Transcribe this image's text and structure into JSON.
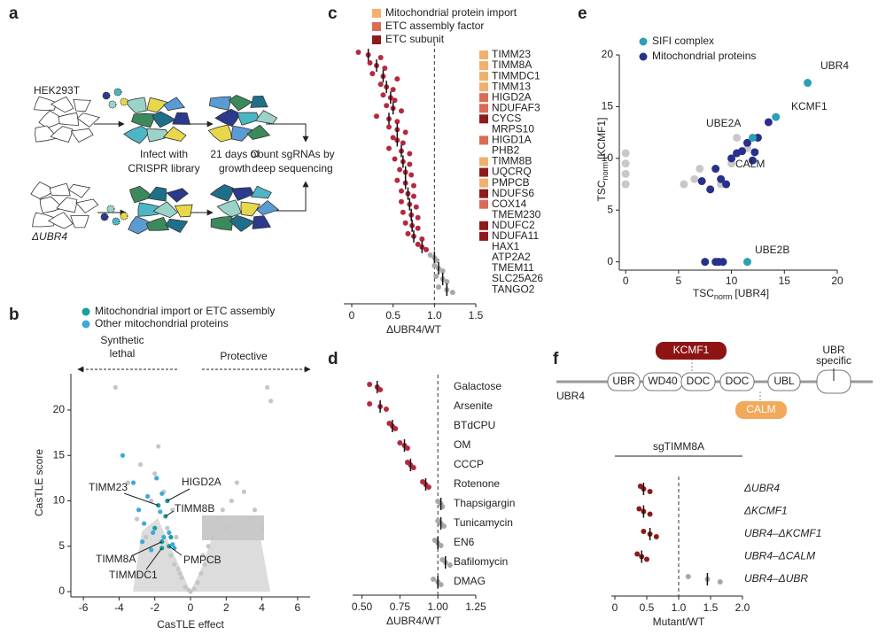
{
  "panel_labels": [
    "a",
    "b",
    "c",
    "d",
    "e",
    "f"
  ],
  "diagram_a": {
    "cell_line": "HEK293T",
    "mutant": "ΔUBR4",
    "steps": [
      [
        "Infect with",
        "CRISPR library"
      ],
      [
        "21 days of",
        "growth"
      ],
      [
        "Count sgRNAs by",
        "deep sequencing"
      ]
    ]
  },
  "diagram_f": {
    "protein": "UBR4",
    "domains": [
      "UBR",
      "WD40",
      "DOC",
      "DOC",
      "UBL"
    ],
    "specific": [
      "UBR",
      "specific"
    ],
    "partners": [
      "KCMF1",
      "CALM"
    ]
  },
  "chart_data": [
    {
      "type": "scatter",
      "x_label": "CasTLE effect",
      "y_label": "CasTLE score",
      "notes": [
        [
          "Synthetic",
          "lethal"
        ],
        [
          "Protective"
        ]
      ],
      "xlim": [
        -6.7,
        6.7
      ],
      "ylim": [
        0,
        24
      ],
      "xticks": [
        -6,
        -4,
        -2,
        0,
        2,
        4,
        6
      ],
      "yticks": [
        0,
        5,
        10,
        15,
        20
      ],
      "series": [
        {
          "color": "#c6c6c6",
          "x": [
            -4.2,
            -3.5,
            -3,
            -2.8,
            -2.5,
            -2.2,
            -2,
            -1.8,
            -1.5,
            -1.3,
            -1.1,
            -1,
            -0.9,
            -0.8,
            -0.6,
            -0.5,
            -0.3,
            -0.1,
            0,
            0.2,
            0.4,
            0.6,
            0.8,
            1,
            1.2,
            1.5,
            1.8,
            2,
            2.3,
            2.6,
            3,
            3.3,
            3.6,
            4,
            4.3,
            4.5,
            -0.7,
            0.7,
            -1.2,
            1.3
          ],
          "y": [
            22.5,
            12,
            8,
            14,
            6,
            10,
            13,
            16,
            11,
            7,
            4,
            9,
            3,
            6,
            2,
            1.5,
            0.5,
            0.2,
            0,
            0.3,
            1,
            2,
            3,
            5,
            6,
            8,
            9,
            7,
            10,
            12,
            11,
            8,
            9,
            7,
            22.5,
            21,
            2.5,
            4,
            5,
            7
          ]
        },
        {
          "name": "Mitochondrial import or ETC assembly",
          "color": "#1b9e9a",
          "x": [
            -1.8,
            -1.3,
            -1.4,
            -1.6,
            -1.6,
            -1.2,
            -2,
            -1.1
          ],
          "y": [
            9.5,
            10,
            8.3,
            5.5,
            4.8,
            5,
            7,
            6
          ],
          "point_labels": [
            "TIMM23",
            "HIGD2A",
            "TIMM8B",
            "TIMM8A",
            "TIMMDC1",
            "PMPCB",
            null,
            null
          ]
        },
        {
          "name": "Other mitochondrial proteins",
          "color": "#3ea9dc",
          "x": [
            -3.8,
            -3.2,
            -2.9,
            -2.6,
            -2.4,
            -2.1,
            -1.9,
            -1.7,
            -1.5,
            -1.2,
            -1,
            -2.2,
            -2.7,
            -1.6,
            -0.9
          ],
          "y": [
            15,
            12,
            9,
            7.5,
            10.5,
            6.5,
            12.5,
            8.8,
            6,
            6.5,
            5.2,
            4.6,
            5.5,
            10.8,
            4.8
          ]
        }
      ]
    },
    {
      "type": "strip",
      "x_label": "ΔUBR4/WT",
      "xlim": [
        0,
        1.5
      ],
      "xticks": [
        0,
        0.5,
        {
          "value": 1,
          "label": "1.0"
        },
        1.5
      ],
      "refline": 1,
      "legend": [
        {
          "name": "Mitochondrial protein import",
          "color": "#f2b06e"
        },
        {
          "name": "ETC assembly factor",
          "color": "#d96c55"
        },
        {
          "name": "ETC subunit",
          "color": "#8e1b1b"
        }
      ],
      "categories": [
        "TIMM23",
        "TIMM8A",
        "TIMMDC1",
        "TIMM13",
        "HIGD2A",
        "NDUFAF3",
        "CYCS",
        "MRPS10",
        "HIGD1A",
        "PHB2",
        "TIMM8B",
        "UQCRQ",
        "PMPCB",
        "NDUFS6",
        "COX14",
        "TMEM230",
        "NDUFC2",
        "NDUFA11",
        "HAX1",
        "ATP2A2",
        "TMEM11",
        "SLC25A26",
        "TANGO2"
      ],
      "groups": [
        0,
        0,
        0,
        0,
        1,
        1,
        2,
        null,
        1,
        null,
        0,
        2,
        0,
        2,
        1,
        null,
        2,
        2,
        null,
        null,
        null,
        null,
        null
      ],
      "values": [
        0.2,
        0.3,
        0.38,
        0.42,
        0.47,
        0.5,
        0.45,
        0.55,
        0.55,
        0.6,
        0.62,
        0.65,
        0.65,
        0.68,
        0.7,
        0.72,
        0.73,
        0.75,
        0.85,
        1,
        1.05,
        1.1,
        1.15
      ],
      "points": [
        [
          0.08,
          0.2,
          0.35
        ],
        [
          0.22,
          0.3,
          0.4
        ],
        [
          0.25,
          0.38,
          0.55
        ],
        [
          0.35,
          0.42,
          0.5
        ],
        [
          0.38,
          0.47,
          0.52
        ],
        [
          0.42,
          0.5,
          0.6
        ],
        [
          0.3,
          0.45,
          0.55
        ],
        [
          0.45,
          0.55,
          0.65
        ],
        [
          0.5,
          0.55,
          0.62
        ],
        [
          0.45,
          0.6,
          0.7
        ],
        [
          0.52,
          0.62,
          0.7
        ],
        [
          0.58,
          0.65,
          0.72
        ],
        [
          0.55,
          0.65,
          0.75
        ],
        [
          0.6,
          0.68,
          0.75
        ],
        [
          0.6,
          0.7,
          0.78
        ],
        [
          0.62,
          0.72,
          0.8
        ],
        [
          0.65,
          0.73,
          0.8
        ],
        [
          0.68,
          0.75,
          0.85
        ],
        [
          0.8,
          0.85,
          0.9
        ],
        [
          0.95,
          1,
          1.03
        ],
        [
          1,
          1.05,
          1.1
        ],
        [
          1.02,
          1.1,
          1.15
        ],
        [
          1.05,
          1.15,
          1.22
        ]
      ],
      "colors": [
        "#b4293d",
        "#b4293d",
        "#b4293d",
        "#b4293d",
        "#b4293d",
        "#b4293d",
        "#b4293d",
        "#b4293d",
        "#b4293d",
        "#b4293d",
        "#b4293d",
        "#b4293d",
        "#b4293d",
        "#b4293d",
        "#b4293d",
        "#b4293d",
        "#b4293d",
        "#b4293d",
        "#b4293d",
        "#a8a8a8",
        "#a8a8a8",
        "#a8a8a8",
        "#a8a8a8"
      ]
    },
    {
      "type": "strip",
      "x_label": "ΔUBR4/WT",
      "xlim": [
        0.45,
        1.25
      ],
      "xticks": [
        {
          "value": 0.5,
          "label": "0.50"
        },
        {
          "value": 0.75,
          "label": "0.75"
        },
        {
          "value": 1,
          "label": "1.00"
        },
        {
          "value": 1.25,
          "label": "1.25"
        }
      ],
      "refline": 1,
      "categories": [
        "Galactose",
        "Arsenite",
        "BTdCPU",
        "OM",
        "CCCP",
        "Rotenone",
        "Thapsigargin",
        "Tunicamycin",
        "EN6",
        "Bafilomycin",
        "DMAG"
      ],
      "values": [
        0.6,
        0.62,
        0.7,
        0.78,
        0.82,
        0.92,
        1.02,
        1.02,
        1,
        1.05,
        1
      ],
      "points": [
        [
          0.55,
          0.6,
          0.62
        ],
        [
          0.55,
          0.62,
          0.66
        ],
        [
          0.68,
          0.7,
          0.72
        ],
        [
          0.75,
          0.78,
          0.8
        ],
        [
          0.8,
          0.82,
          0.84
        ],
        [
          0.9,
          0.92,
          0.94
        ],
        [
          1,
          1.02,
          1.03
        ],
        [
          1,
          1.02,
          1.04
        ],
        [
          0.98,
          1,
          1.02
        ],
        [
          1.03,
          1.05,
          1.08
        ],
        [
          0.97,
          1,
          1.02
        ]
      ],
      "colors": [
        "#b4293d",
        "#b4293d",
        "#b4293d",
        "#b4293d",
        "#b4293d",
        "#b4293d",
        "#a8a8a8",
        "#a8a8a8",
        "#a8a8a8",
        "#a8a8a8",
        "#a8a8a8"
      ]
    },
    {
      "type": "scatter",
      "x_label": {
        "main": "TSC",
        "sub": "norm",
        "rest": "[UBR4]"
      },
      "y_label": {
        "main": "TSC",
        "sub": "norm",
        "rest": "[KCMF1]"
      },
      "xlim": [
        -0.6,
        20
      ],
      "ylim": [
        -0.8,
        20
      ],
      "xticks": [
        0,
        5,
        10,
        15,
        20
      ],
      "yticks": [
        0,
        5,
        10,
        15,
        20
      ],
      "series": [
        {
          "color": "#c8c8c8",
          "x": [
            0,
            0,
            0,
            0,
            5.5,
            6.5,
            7,
            8,
            9,
            10,
            10.5,
            11.5
          ],
          "y": [
            7.5,
            8.5,
            9.5,
            10.5,
            7.5,
            8,
            9,
            7,
            7.5,
            9.5,
            12,
            11
          ]
        },
        {
          "name": "SIFI complex",
          "color": "#2b9fb4",
          "x": [
            17.2,
            14.2,
            12,
            11.5
          ],
          "y": [
            17.3,
            14,
            12,
            0
          ],
          "point_labels": [
            "UBR4",
            "KCMF1",
            "UBE2A",
            "UBE2B"
          ]
        },
        {
          "name": "Mitochondrial proteins",
          "color": "#27318a",
          "x": [
            7.2,
            8,
            8.5,
            9,
            9.5,
            10,
            10.5,
            11,
            11.5,
            12.5,
            13.5,
            12,
            12.2,
            7.5,
            8.5,
            9.2,
            8.8
          ],
          "y": [
            7.8,
            7,
            9,
            8,
            7.5,
            10,
            10.5,
            10.7,
            11.5,
            12,
            13.5,
            9.8,
            10.6,
            0,
            0,
            0,
            0
          ],
          "point_labels": [
            null,
            null,
            null,
            null,
            null,
            null,
            null,
            null,
            null,
            null,
            null,
            null,
            "CALM",
            null,
            null,
            null,
            null
          ]
        }
      ]
    },
    {
      "type": "strip",
      "header": "sgTIMM8A",
      "x_label": "Mutant/WT",
      "xlim": [
        0,
        2
      ],
      "xticks": [
        0,
        0.5,
        {
          "value": 1,
          "label": "1.0"
        },
        1.5,
        {
          "value": 2,
          "label": "2.0"
        }
      ],
      "refline": 1,
      "categories": [
        "ΔUBR4",
        "ΔKCMF1",
        "UBR4–ΔKCMF1",
        "UBR4–ΔCALM",
        "UBR4–ΔUBR"
      ],
      "values": [
        0.45,
        0.45,
        0.55,
        0.42,
        1.45
      ],
      "points": [
        [
          0.4,
          0.45,
          0.55
        ],
        [
          0.38,
          0.45,
          0.55
        ],
        [
          0.45,
          0.55,
          0.65
        ],
        [
          0.35,
          0.42,
          0.5
        ],
        [
          1.15,
          1.45,
          1.65
        ]
      ],
      "colors": [
        "#8e1b1b",
        "#8e1b1b",
        "#8e1b1b",
        "#8e1b1b",
        "#a8a8a8"
      ]
    }
  ]
}
